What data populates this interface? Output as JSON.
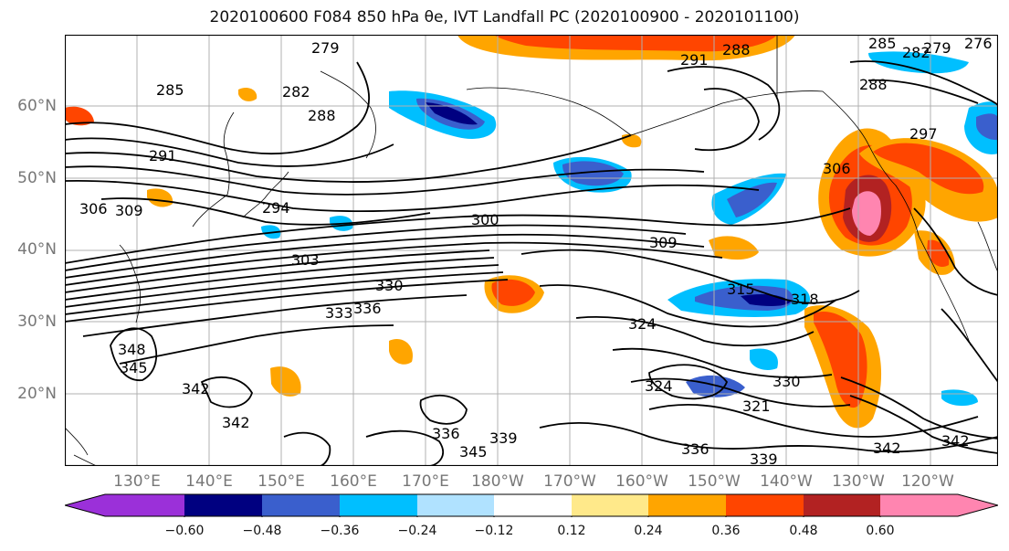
{
  "title": "2020100600 F084 850 hPa θe, IVT Landfall PC (2020100900 - 2020101100)",
  "lat_labels": [
    "60°N",
    "50°N",
    "40°N",
    "30°N",
    "20°N"
  ],
  "lon_labels": [
    "130°E",
    "140°E",
    "150°E",
    "160°E",
    "170°E",
    "180°W",
    "170°W",
    "160°W",
    "150°W",
    "140°W",
    "130°W",
    "120°W"
  ],
  "contour_labels": [
    "279",
    "285",
    "282",
    "288",
    "291",
    "291",
    "288",
    "285",
    "282",
    "279",
    "276",
    "288",
    "297",
    "294",
    "306",
    "309",
    "300",
    "306",
    "303",
    "309",
    "330",
    "333",
    "336",
    "315",
    "318",
    "324",
    "348",
    "345",
    "342",
    "342",
    "324",
    "330",
    "336",
    "339",
    "336",
    "345",
    "339",
    "342",
    "321",
    "342"
  ],
  "colorbar": {
    "ticks": [
      "−0.60",
      "−0.48",
      "−0.36",
      "−0.24",
      "−0.12",
      "0.12",
      "0.24",
      "0.36",
      "0.48",
      "0.60"
    ],
    "colors": [
      "#9b30d9",
      "#000080",
      "#3a5fcd",
      "#00bfff",
      "#b0e2ff",
      "#ffffff",
      "#ffe98a",
      "#ffa500",
      "#ff4500",
      "#b22222",
      "#ff85b0"
    ]
  }
}
